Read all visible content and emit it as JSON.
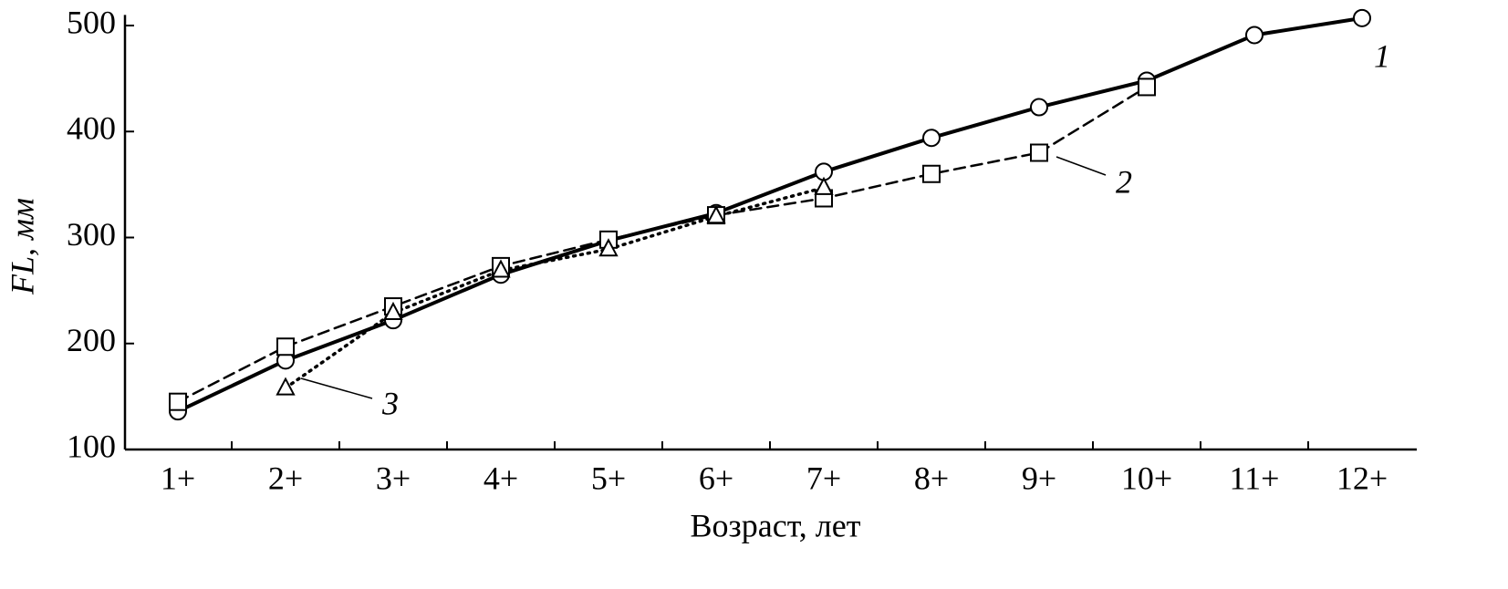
{
  "chart_data": {
    "type": "line",
    "xlabel": "Возраст, лет",
    "ylabel": "FL, мм",
    "categories": [
      "1+",
      "2+",
      "3+",
      "4+",
      "5+",
      "6+",
      "7+",
      "8+",
      "9+",
      "10+",
      "11+",
      "12+"
    ],
    "ylim": [
      100,
      510
    ],
    "yticks": [
      100,
      200,
      300,
      400,
      500
    ],
    "grid": false,
    "series": [
      {
        "name": "1",
        "color": "#000000",
        "marker": "circle",
        "dash": "solid",
        "values": [
          136,
          184,
          222,
          265,
          297,
          323,
          362,
          394,
          423,
          448,
          491,
          507
        ]
      },
      {
        "name": "2",
        "color": "#000000",
        "marker": "square",
        "dash": "dashed",
        "values": [
          145,
          197,
          235,
          273,
          298,
          321,
          337,
          360,
          380,
          442,
          null,
          null
        ]
      },
      {
        "name": "3",
        "color": "#000000",
        "marker": "triangle",
        "dash": "dotted",
        "values": [
          null,
          158,
          229,
          269,
          289,
          320,
          347,
          null,
          null,
          null,
          null,
          null
        ]
      }
    ]
  }
}
